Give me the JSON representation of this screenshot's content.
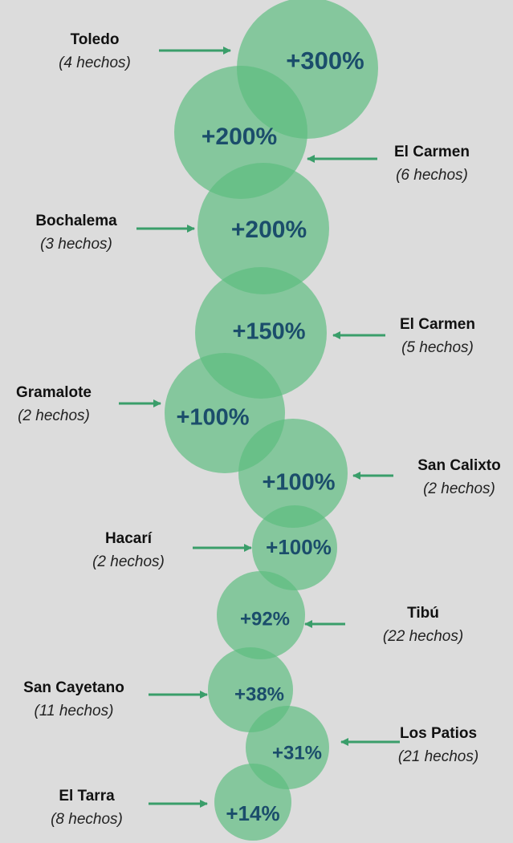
{
  "items": [
    {
      "name": "Toledo",
      "detail": "(4 hechos)",
      "label": "+300%"
    },
    {
      "name": "El Carmen",
      "detail": "(6 hechos)",
      "label": "+200%"
    },
    {
      "name": "Bochalema",
      "detail": "(3 hechos)",
      "label": "+200%"
    },
    {
      "name": "El Carmen",
      "detail": "(5 hechos)",
      "label": "+150%"
    },
    {
      "name": "Gramalote",
      "detail": "(2 hechos)",
      "label": "+100%"
    },
    {
      "name": "San Calixto",
      "detail": "(2 hechos)",
      "label": "+100%"
    },
    {
      "name": "Hacarí",
      "detail": "(2 hechos)",
      "label": "+100%"
    },
    {
      "name": "Tibú",
      "detail": "(22 hechos)",
      "label": "+92%"
    },
    {
      "name": "San Cayetano",
      "detail": "(11 hechos)",
      "label": "+38%"
    },
    {
      "name": "Los Patios",
      "detail": "(21 hechos)",
      "label": "+31%"
    },
    {
      "name": "El Tarra",
      "detail": "(8 hechos)",
      "label": "+14%"
    }
  ]
}
